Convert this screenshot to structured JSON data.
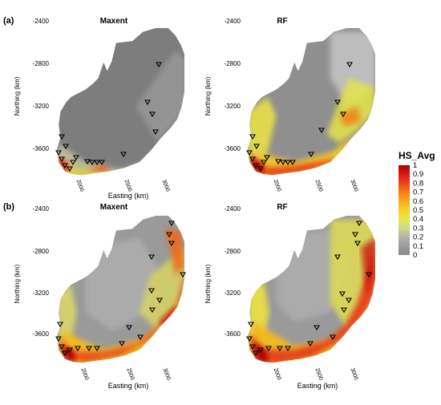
{
  "figure": {
    "rows": [
      {
        "label": "(a)",
        "panels": [
          {
            "title": "Maxent",
            "xlabel": "Easting (km)",
            "ylabel": "Northing (km)"
          },
          {
            "title": "RF",
            "xlabel": "",
            "ylabel": "Northing (km)"
          }
        ]
      },
      {
        "label": "(b)",
        "panels": [
          {
            "title": "Maxent",
            "xlabel": "Easting (km)",
            "ylabel": "Northing (km)"
          },
          {
            "title": "RF",
            "xlabel": "Easting (km)",
            "ylabel": "Northing (km)"
          }
        ]
      }
    ],
    "y_ticks": [
      "-2400",
      "-2800",
      "-3200",
      "-3600"
    ],
    "x_ticks": [
      "2000",
      "2500",
      "3000"
    ]
  },
  "legend": {
    "title": "HS_Avg",
    "ticks": [
      "1",
      "0.9",
      "0.8",
      "0.7",
      "0.6",
      "0.5",
      "0.4",
      "0.3",
      "0.2",
      "0.1",
      "0"
    ],
    "colors": [
      "#b10000",
      "#d81818",
      "#ee4418",
      "#f67c16",
      "#f7aa1c",
      "#f6d22a",
      "#e7e648",
      "#cfd88a",
      "#b3b3a7",
      "#9b9b9b",
      "#8a8a8a"
    ]
  }
}
